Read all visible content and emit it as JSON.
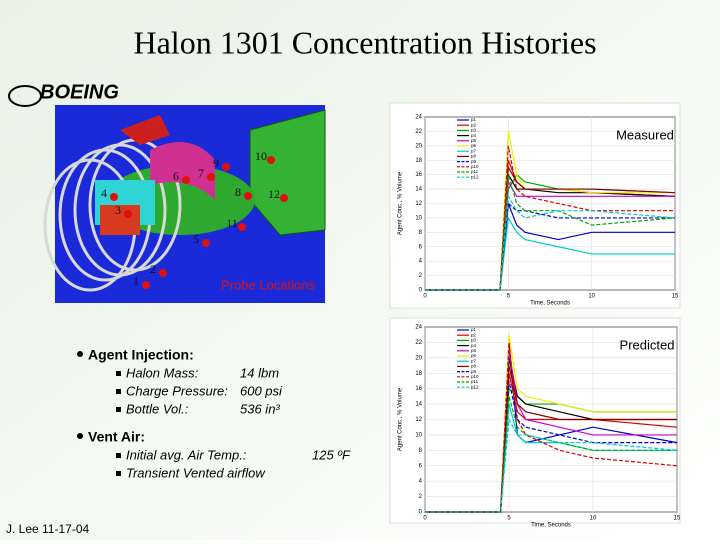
{
  "slide": {
    "title": "Halon 1301 Concentration Histories",
    "logo": "BOEING",
    "footer": "J. Lee 11-17-04",
    "probe_caption": "Probe Locations",
    "probes": [
      "1",
      "2",
      "3",
      "4",
      "5",
      "6",
      "7",
      "8",
      "9",
      "10",
      "11",
      "12"
    ],
    "bullets": [
      {
        "heading": "Agent Injection:",
        "items": [
          [
            "Halon Mass:",
            "14 lbm"
          ],
          [
            "Charge Pressure:",
            "600 psi"
          ],
          [
            "Bottle Vol.:",
            "536 in³"
          ]
        ]
      },
      {
        "heading": "Vent Air:",
        "items": [
          [
            "Initial avg. Air Temp.:",
            "125 ºF"
          ],
          [
            "Transient Vented airflow"
          ]
        ]
      }
    ]
  },
  "chart_data": [
    {
      "type": "line",
      "annotation": "Measured",
      "x_label": "Time, Seconds",
      "y_label": "Agent Conc., % Volume",
      "xlim": [
        0,
        15
      ],
      "ylim": [
        0,
        24
      ],
      "xticks": [
        0,
        5,
        10,
        15
      ],
      "yticks": [
        0,
        2,
        4,
        6,
        8,
        10,
        12,
        14,
        16,
        18,
        20,
        22,
        24
      ],
      "x": [
        0,
        4.5,
        5,
        5.5,
        6,
        8,
        10,
        15
      ],
      "series": [
        {
          "name": "p1",
          "color": "#0000cc",
          "dashed": false,
          "values": [
            0,
            0,
            12,
            9,
            8,
            7,
            8,
            8
          ]
        },
        {
          "name": "p2",
          "color": "#dd0000",
          "dashed": false,
          "values": [
            0,
            0,
            18,
            15,
            14,
            14,
            13.5,
            13
          ]
        },
        {
          "name": "p3",
          "color": "#00aa00",
          "dashed": false,
          "values": [
            0,
            0,
            14,
            16,
            15,
            14,
            14,
            13.5
          ]
        },
        {
          "name": "p4",
          "color": "#000000",
          "dashed": false,
          "values": [
            0,
            0,
            16,
            14,
            14,
            13.5,
            13.5,
            13
          ]
        },
        {
          "name": "p5",
          "color": "#cc00cc",
          "dashed": false,
          "values": [
            0,
            0,
            15,
            13,
            13,
            13,
            13,
            13
          ]
        },
        {
          "name": "p6",
          "color": "#eeee00",
          "dashed": false,
          "values": [
            0,
            0,
            22,
            16,
            14,
            14,
            13.5,
            13.5
          ]
        },
        {
          "name": "p7",
          "color": "#00cccc",
          "dashed": false,
          "values": [
            0,
            0,
            10,
            8,
            7,
            6,
            5,
            5
          ]
        },
        {
          "name": "p8",
          "color": "#880000",
          "dashed": false,
          "values": [
            0,
            0,
            17,
            15,
            14,
            14,
            14,
            13.5
          ]
        },
        {
          "name": "p9",
          "color": "#0000cc",
          "dashed": true,
          "values": [
            0,
            0,
            12,
            11,
            11,
            10,
            10,
            10
          ]
        },
        {
          "name": "p10",
          "color": "#dd0000",
          "dashed": true,
          "values": [
            0,
            0,
            20,
            14,
            13,
            12,
            11,
            11
          ]
        },
        {
          "name": "p11",
          "color": "#00aa00",
          "dashed": true,
          "values": [
            0,
            0,
            16,
            12,
            11,
            11,
            9,
            10
          ]
        },
        {
          "name": "p12",
          "color": "#00cccc",
          "dashed": true,
          "values": [
            0,
            0,
            13,
            11,
            10,
            11,
            11,
            10
          ]
        }
      ]
    },
    {
      "type": "line",
      "annotation": "Predicted",
      "x_label": "Time, Seconds",
      "y_label": "Agent Conc., % Volume",
      "xlim": [
        0,
        15
      ],
      "ylim": [
        0,
        24
      ],
      "xticks": [
        0,
        5,
        10,
        15
      ],
      "yticks": [
        0,
        2,
        4,
        6,
        8,
        10,
        12,
        14,
        16,
        18,
        20,
        22,
        24
      ],
      "x": [
        0,
        4.5,
        5,
        5.5,
        6,
        8,
        10,
        15
      ],
      "series": [
        {
          "name": "p1",
          "color": "#0000cc",
          "dashed": false,
          "values": [
            0,
            0,
            22,
            10,
            9,
            10,
            11,
            9
          ]
        },
        {
          "name": "p2",
          "color": "#dd0000",
          "dashed": false,
          "values": [
            0,
            0,
            18,
            13,
            12,
            12,
            12,
            11
          ]
        },
        {
          "name": "p3",
          "color": "#00aa00",
          "dashed": false,
          "values": [
            0,
            0,
            16,
            15,
            14,
            14,
            13,
            13
          ]
        },
        {
          "name": "p4",
          "color": "#000000",
          "dashed": false,
          "values": [
            0,
            0,
            20,
            15,
            14,
            13,
            12,
            12
          ]
        },
        {
          "name": "p5",
          "color": "#cc00cc",
          "dashed": false,
          "values": [
            0,
            0,
            21,
            14,
            12,
            11,
            10,
            10
          ]
        },
        {
          "name": "p6",
          "color": "#eeee00",
          "dashed": false,
          "values": [
            0,
            0,
            23,
            16,
            15,
            14,
            13,
            13
          ]
        },
        {
          "name": "p7",
          "color": "#00cccc",
          "dashed": false,
          "values": [
            0,
            0,
            14,
            10,
            9,
            9,
            8,
            8
          ]
        },
        {
          "name": "p8",
          "color": "#880000",
          "dashed": false,
          "values": [
            0,
            0,
            19,
            14,
            13,
            12,
            12,
            12
          ]
        },
        {
          "name": "p9",
          "color": "#0000cc",
          "dashed": true,
          "values": [
            0,
            0,
            17,
            12,
            11,
            10,
            9,
            9
          ]
        },
        {
          "name": "p10",
          "color": "#dd0000",
          "dashed": true,
          "values": [
            0,
            0,
            22,
            12,
            10,
            8,
            7,
            6
          ]
        },
        {
          "name": "p11",
          "color": "#00aa00",
          "dashed": true,
          "values": [
            0,
            0,
            15,
            11,
            10,
            9,
            8,
            8
          ]
        },
        {
          "name": "p12",
          "color": "#00cccc",
          "dashed": true,
          "values": [
            0,
            0,
            12,
            10,
            10,
            9,
            9,
            8
          ]
        }
      ]
    }
  ]
}
